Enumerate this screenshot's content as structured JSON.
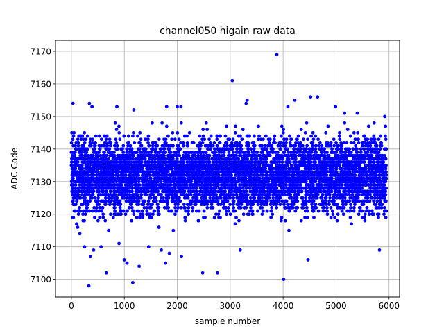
{
  "chart_data": {
    "type": "scatter",
    "title": "channel050 higain raw data",
    "xlabel": "sample number",
    "ylabel": "ADC Code",
    "xlim": [
      -300,
      6200
    ],
    "ylim": [
      7094.6,
      7173.4
    ],
    "xticks": [
      0,
      1000,
      2000,
      3000,
      4000,
      5000,
      6000
    ],
    "yticks": [
      7100,
      7110,
      7120,
      7130,
      7140,
      7150,
      7160,
      7170
    ],
    "grid": true,
    "marker_color": "#0000ff",
    "series": [
      {
        "n_points": 5952,
        "x_range": [
          0,
          5951
        ],
        "typical_y_range": [
          7115,
          7148
        ],
        "center_y": 7132,
        "outliers": [
          {
            "x": 30,
            "y": 7154
          },
          {
            "x": 50,
            "y": 7145
          },
          {
            "x": 160,
            "y": 7114
          },
          {
            "x": 250,
            "y": 7110
          },
          {
            "x": 330,
            "y": 7098
          },
          {
            "x": 340,
            "y": 7154
          },
          {
            "x": 360,
            "y": 7107
          },
          {
            "x": 390,
            "y": 7153
          },
          {
            "x": 420,
            "y": 7109
          },
          {
            "x": 560,
            "y": 7110
          },
          {
            "x": 660,
            "y": 7102
          },
          {
            "x": 860,
            "y": 7153
          },
          {
            "x": 900,
            "y": 7111
          },
          {
            "x": 1000,
            "y": 7106
          },
          {
            "x": 1050,
            "y": 7105
          },
          {
            "x": 1160,
            "y": 7099
          },
          {
            "x": 1180,
            "y": 7152
          },
          {
            "x": 1280,
            "y": 7104
          },
          {
            "x": 1460,
            "y": 7110
          },
          {
            "x": 1700,
            "y": 7109
          },
          {
            "x": 1780,
            "y": 7105
          },
          {
            "x": 1800,
            "y": 7153
          },
          {
            "x": 1850,
            "y": 7108
          },
          {
            "x": 2000,
            "y": 7153
          },
          {
            "x": 2070,
            "y": 7153
          },
          {
            "x": 2080,
            "y": 7107
          },
          {
            "x": 2480,
            "y": 7102
          },
          {
            "x": 2760,
            "y": 7102
          },
          {
            "x": 3040,
            "y": 7161
          },
          {
            "x": 3190,
            "y": 7109
          },
          {
            "x": 3300,
            "y": 7154
          },
          {
            "x": 3320,
            "y": 7155
          },
          {
            "x": 3880,
            "y": 7169
          },
          {
            "x": 4010,
            "y": 7100
          },
          {
            "x": 4090,
            "y": 7153
          },
          {
            "x": 4220,
            "y": 7155
          },
          {
            "x": 4470,
            "y": 7106
          },
          {
            "x": 4520,
            "y": 7156
          },
          {
            "x": 4650,
            "y": 7156
          },
          {
            "x": 4990,
            "y": 7153
          },
          {
            "x": 5160,
            "y": 7151
          },
          {
            "x": 5400,
            "y": 7151
          },
          {
            "x": 5820,
            "y": 7109
          },
          {
            "x": 5920,
            "y": 7150
          }
        ]
      }
    ]
  }
}
